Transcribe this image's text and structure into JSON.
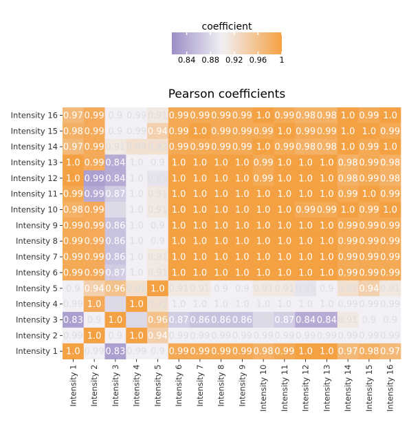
{
  "chart_data": {
    "type": "heatmap",
    "title": "Pearson coefficients",
    "colorbar": {
      "label": "coefficient",
      "ticks": [
        "0.84",
        "0.88",
        "0.92",
        "0.96",
        "1"
      ],
      "tick_values": [
        0.84,
        0.88,
        0.92,
        0.96,
        1.0
      ],
      "range": [
        0.815,
        1.0
      ],
      "low_color": "#9b8ec6",
      "mid_color": "#f2f0f4",
      "high_color": "#f4a143",
      "mid_value": 0.9
    },
    "x_labels": [
      "Intensity 1",
      "Intensity 2",
      "Intensity 3",
      "Intensity 4",
      "Intensity 5",
      "Intensity 6",
      "Intensity 7",
      "Intensity 8",
      "Intensity 9",
      "Intensity 10",
      "Intensity 11",
      "Intensity 12",
      "Intensity 13",
      "Intensity 14",
      "Intensity 15",
      "Intensity 16"
    ],
    "y_labels": [
      "Intensity 16",
      "Intensity 15",
      "Intensity 14",
      "Intensity 13",
      "Intensity 12",
      "Intensity 11",
      "Intensity 10",
      "Intensity 9",
      "Intensity 8",
      "Intensity 7",
      "Intensity 6",
      "Intensity 5",
      "Intensity 4",
      "Intensity 3",
      "Intensity 2",
      "Intensity 1"
    ],
    "values": [
      [
        0.97,
        0.99,
        0.9,
        0.99,
        0.91,
        0.99,
        0.99,
        0.99,
        0.99,
        1.0,
        0.99,
        0.98,
        0.98,
        1.0,
        0.99,
        1.0
      ],
      [
        0.98,
        0.99,
        0.9,
        0.99,
        0.94,
        0.99,
        1.0,
        0.99,
        0.99,
        0.99,
        1.0,
        0.99,
        0.99,
        1.0,
        1.0,
        0.99
      ],
      [
        0.97,
        0.99,
        0.91,
        0.99,
        0.92,
        0.99,
        0.99,
        0.99,
        0.99,
        1.0,
        0.99,
        0.98,
        0.98,
        1.0,
        0.99,
        1.0
      ],
      [
        1.0,
        0.99,
        0.84,
        1.0,
        0.9,
        1.0,
        1.0,
        1.0,
        1.0,
        0.99,
        1.0,
        1.0,
        1.0,
        0.98,
        0.99,
        0.98
      ],
      [
        1.0,
        0.99,
        0.84,
        1.0,
        0.89,
        1.0,
        1.0,
        1.0,
        1.0,
        0.99,
        1.0,
        1.0,
        1.0,
        0.98,
        0.99,
        0.98
      ],
      [
        0.99,
        0.99,
        0.87,
        1.0,
        0.91,
        1.0,
        1.0,
        1.0,
        1.0,
        1.0,
        1.0,
        1.0,
        1.0,
        0.99,
        1.0,
        0.99
      ],
      [
        0.98,
        0.99,
        0.88,
        1.0,
        0.91,
        1.0,
        1.0,
        1.0,
        1.0,
        1.0,
        1.0,
        0.99,
        0.99,
        1.0,
        0.99,
        1.0
      ],
      [
        0.99,
        0.99,
        0.86,
        1.0,
        0.9,
        1.0,
        1.0,
        1.0,
        1.0,
        1.0,
        1.0,
        1.0,
        1.0,
        0.99,
        0.99,
        0.99
      ],
      [
        0.99,
        0.99,
        0.86,
        1.0,
        0.9,
        1.0,
        1.0,
        1.0,
        1.0,
        1.0,
        1.0,
        1.0,
        1.0,
        0.99,
        0.99,
        0.99
      ],
      [
        0.99,
        0.99,
        0.86,
        1.0,
        0.91,
        1.0,
        1.0,
        1.0,
        1.0,
        1.0,
        1.0,
        1.0,
        1.0,
        0.99,
        0.99,
        0.99
      ],
      [
        0.99,
        0.99,
        0.87,
        1.0,
        0.91,
        1.0,
        1.0,
        1.0,
        1.0,
        1.0,
        1.0,
        1.0,
        1.0,
        0.99,
        0.99,
        0.99
      ],
      [
        0.9,
        0.94,
        0.96,
        0.92,
        1.0,
        0.91,
        0.91,
        0.9,
        0.9,
        0.91,
        0.91,
        0.89,
        0.9,
        0.92,
        0.94,
        0.91
      ],
      [
        0.99,
        1.0,
        0.88,
        1.0,
        0.92,
        1.0,
        1.0,
        1.0,
        1.0,
        1.0,
        1.0,
        1.0,
        1.0,
        0.99,
        0.99,
        0.99
      ],
      [
        0.83,
        0.9,
        1.0,
        0.88,
        0.96,
        0.87,
        0.86,
        0.86,
        0.86,
        0.88,
        0.87,
        0.84,
        0.84,
        0.91,
        0.9,
        0.9
      ],
      [
        0.99,
        1.0,
        0.9,
        1.0,
        0.94,
        0.99,
        0.99,
        0.99,
        0.99,
        0.99,
        0.99,
        0.99,
        0.99,
        0.99,
        0.99,
        0.99
      ],
      [
        1.0,
        0.99,
        0.83,
        0.99,
        0.9,
        0.99,
        0.99,
        0.99,
        0.99,
        0.98,
        0.99,
        1.0,
        1.0,
        0.97,
        0.98,
        0.97
      ]
    ],
    "color_values": [
      [
        0.97,
        0.988,
        0.9,
        0.9,
        0.91,
        0.99,
        0.99,
        0.99,
        0.99,
        1.0,
        0.99,
        0.98,
        0.98,
        1.0,
        0.99,
        1.0
      ],
      [
        0.98,
        0.988,
        0.9,
        0.9,
        0.94,
        0.99,
        1.0,
        0.99,
        0.99,
        0.99,
        1.0,
        0.99,
        0.99,
        1.0,
        1.0,
        0.99
      ],
      [
        0.97,
        0.988,
        0.91,
        0.92,
        0.92,
        0.99,
        0.99,
        0.99,
        0.99,
        1.0,
        0.99,
        0.98,
        0.98,
        1.0,
        0.99,
        1.0
      ],
      [
        1.0,
        0.988,
        0.84,
        0.9,
        0.9,
        1.0,
        1.0,
        1.0,
        1.0,
        0.99,
        1.0,
        1.0,
        1.0,
        0.98,
        0.99,
        0.98
      ],
      [
        1.0,
        0.83,
        0.84,
        0.9,
        0.89,
        1.0,
        1.0,
        1.0,
        1.0,
        0.99,
        1.0,
        1.0,
        1.0,
        0.98,
        0.99,
        0.98
      ],
      [
        0.99,
        0.84,
        0.87,
        0.9,
        0.91,
        1.0,
        1.0,
        1.0,
        1.0,
        1.0,
        1.0,
        1.0,
        1.0,
        0.99,
        1.0,
        0.99
      ],
      [
        0.98,
        0.988,
        0.88,
        0.9,
        0.91,
        1.0,
        1.0,
        1.0,
        1.0,
        1.0,
        1.0,
        0.99,
        0.99,
        1.0,
        0.99,
        1.0
      ],
      [
        0.99,
        0.988,
        0.86,
        0.9,
        0.9,
        1.0,
        1.0,
        1.0,
        1.0,
        1.0,
        1.0,
        1.0,
        1.0,
        0.99,
        0.99,
        0.99
      ],
      [
        0.99,
        0.988,
        0.86,
        0.9,
        0.9,
        1.0,
        1.0,
        1.0,
        1.0,
        1.0,
        1.0,
        1.0,
        1.0,
        0.99,
        0.99,
        0.99
      ],
      [
        0.99,
        0.988,
        0.86,
        0.9,
        0.91,
        1.0,
        1.0,
        1.0,
        1.0,
        1.0,
        1.0,
        1.0,
        1.0,
        0.99,
        0.99,
        0.99
      ],
      [
        0.99,
        0.988,
        0.87,
        0.9,
        0.91,
        1.0,
        1.0,
        1.0,
        1.0,
        1.0,
        1.0,
        1.0,
        1.0,
        0.99,
        0.99,
        0.99
      ],
      [
        0.9,
        0.94,
        0.96,
        0.92,
        1.0,
        0.91,
        0.91,
        0.9,
        0.9,
        0.91,
        0.91,
        0.89,
        0.9,
        0.92,
        0.94,
        0.91
      ],
      [
        0.9,
        0.988,
        0.88,
        1.0,
        0.92,
        0.9,
        0.9,
        0.9,
        0.9,
        0.9,
        0.9,
        0.9,
        0.9,
        0.9,
        0.9,
        0.9
      ],
      [
        0.83,
        0.9,
        1.0,
        0.88,
        0.96,
        0.87,
        0.86,
        0.86,
        0.86,
        0.88,
        0.87,
        0.84,
        0.84,
        0.91,
        0.9,
        0.9
      ],
      [
        0.9,
        1.0,
        0.9,
        1.0,
        0.94,
        0.9,
        0.9,
        0.9,
        0.9,
        0.9,
        0.9,
        0.9,
        0.9,
        0.9,
        0.9,
        0.9
      ],
      [
        1.0,
        0.9,
        0.83,
        0.9,
        0.9,
        0.99,
        0.99,
        0.99,
        0.99,
        0.98,
        0.99,
        1.0,
        1.0,
        0.97,
        0.98,
        0.97
      ]
    ],
    "xlabel": "",
    "ylabel": "",
    "grid": false
  }
}
